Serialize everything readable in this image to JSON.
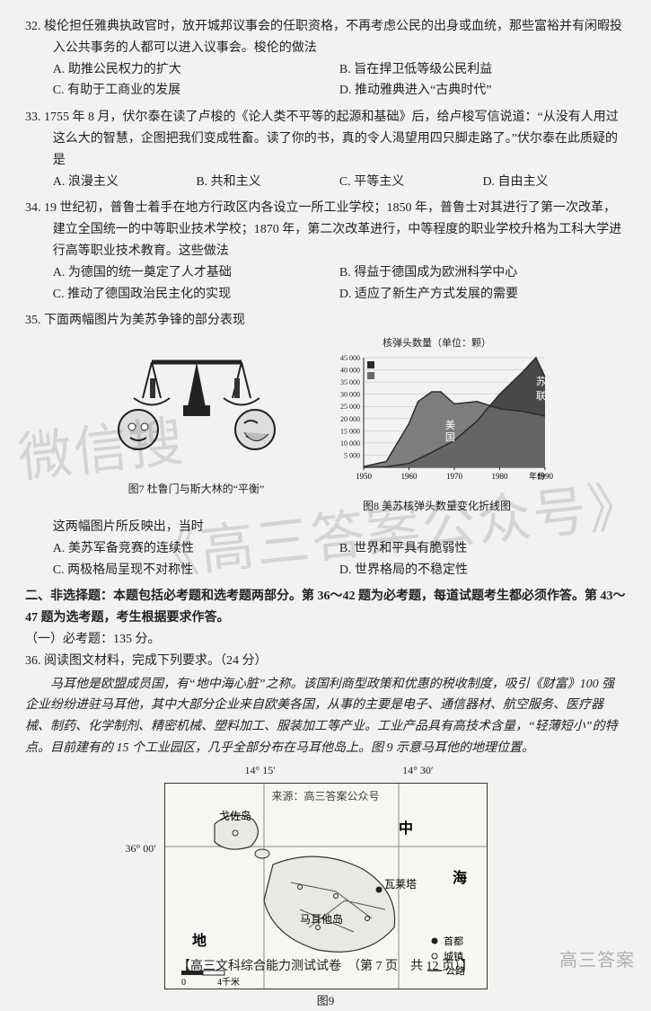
{
  "questions": {
    "q32": {
      "num": "32.",
      "text": "梭伦担任雅典执政官时，放开城邦议事会的任职资格，不再考虑公民的出身或血统，那些富裕并有闲暇投入公共事务的人都可以进入议事会。梭伦的做法",
      "A": "A. 助推公民权力的扩大",
      "B": "B. 旨在捍卫低等级公民利益",
      "C": "C. 有助于工商业的发展",
      "D": "D. 推动雅典进入“古典时代”"
    },
    "q33": {
      "num": "33.",
      "text": "1755 年 8 月，伏尔泰在读了卢梭的《论人类不平等的起源和基础》后，给卢梭写信说道：“从没有人用过这么大的智慧，企图把我们变成牲畜。读了你的书，真的令人渴望用四只脚走路了。”伏尔泰在此质疑的是",
      "A": "A. 浪漫主义",
      "B": "B. 共和主义",
      "C": "C. 平等主义",
      "D": "D. 自由主义"
    },
    "q34": {
      "num": "34.",
      "text": "19 世纪初，普鲁士着手在地方行政区内各设立一所工业学校；1850 年，普鲁士对其进行了第一次改革，建立全国统一的中等职业技术学校；1870 年，第二次改革进行，中等程度的职业学校升格为工科大学进行高等职业技术教育。这些做法",
      "A": "A. 为德国的统一奠定了人才基础",
      "B": "B. 得益于德国成为欧洲科学中心",
      "C": "C. 推动了德国政治民主化的实现",
      "D": "D. 适应了新生产方式发展的需要"
    },
    "q35": {
      "num": "35.",
      "text": "下面两幅图片为美苏争锋的部分表现",
      "sub": "这两幅图片所反映出，当时",
      "A": "A. 美苏军备竞赛的连续性",
      "B": "B. 世界和平具有脆弱性",
      "C": "C. 两极格局呈现不对称性",
      "D": "D. 世界格局的不稳定性"
    }
  },
  "fig7": {
    "caption": "图7 杜鲁门与斯大林的“平衡”"
  },
  "fig8": {
    "caption": "图8 美苏核弹头数量变化折线图",
    "title": "核弹头数量（单位：颗）",
    "xlabel": "年份",
    "legend": {
      "us": "美国",
      "ussr": "苏联"
    },
    "xticks": [
      "1950",
      "1960",
      "1970",
      "1980",
      "1990"
    ],
    "yticks": [
      "5 000",
      "10 000",
      "15 000",
      "20 000",
      "25 000",
      "30 000",
      "35 000",
      "40 000",
      "45 000"
    ],
    "ylim": [
      0,
      45000
    ],
    "series": {
      "us": [
        [
          1950,
          300
        ],
        [
          1955,
          2400
        ],
        [
          1960,
          18000
        ],
        [
          1962,
          27000
        ],
        [
          1965,
          31000
        ],
        [
          1967,
          31000
        ],
        [
          1970,
          26000
        ],
        [
          1975,
          27000
        ],
        [
          1980,
          24000
        ],
        [
          1985,
          23000
        ],
        [
          1990,
          21000
        ]
      ],
      "ussr": [
        [
          1950,
          5
        ],
        [
          1955,
          200
        ],
        [
          1960,
          1600
        ],
        [
          1965,
          6100
        ],
        [
          1970,
          11000
        ],
        [
          1975,
          19000
        ],
        [
          1980,
          30000
        ],
        [
          1985,
          39000
        ],
        [
          1988,
          45000
        ],
        [
          1990,
          37000
        ]
      ]
    },
    "colors": {
      "us": "#2b2b2b",
      "ussr": "#2b2b2b",
      "us_fill": "#6a6a6a",
      "ussr_fill": "#2b2b2b",
      "grid": "#bdbdbd",
      "bg": "#f2f2f0"
    },
    "linewidth": 1.5
  },
  "section2": {
    "head": "二、非选择题：本题包括必考题和选考题两部分。第 36～42 题为必考题，每道试题考生都必须作答。第 43～47 题为选考题，考生根据要求作答。",
    "sub": "（一）必考题：135 分。"
  },
  "q36": {
    "num": "36.",
    "head": "阅读图文材料，完成下列要求。（24 分）",
    "para": "马耳他是欧盟成员国，有“地中海心脏”之称。该国利商型政策和优惠的税收制度，吸引《财富》100 强企业纷纷进驻马耳他，其中大部分企业来自欧美各国，从事的主要是电子、通信器材、航空服务、医疗器械、制药、化学制剂、精密机械、塑料加工、服装加工等产业。工业产品具有高技术含量，“轻薄短小”的特点。目前建有的 15 个工业园区，几乎全部分布在马耳他岛上。图 9 示意马耳他的地理位置。"
  },
  "map": {
    "caption": "图9",
    "source": "来源：高三答案公众号",
    "labels": {
      "gozo": "戈佐岛",
      "malta": "马耳他岛",
      "valletta": "瓦莱塔",
      "sea1": "中",
      "sea2": "海",
      "sea0": "地"
    },
    "lon1": "14° 15′",
    "lon2": "14° 30′",
    "lat": "36° 00′",
    "legend": {
      "capital": "首都",
      "town": "城镇",
      "road": "公路"
    },
    "scale": "0    4千米"
  },
  "footer": "【高三文科综合能力测试试卷　（第 7 页　共 12 页）】",
  "wm_corner": "高三答案"
}
